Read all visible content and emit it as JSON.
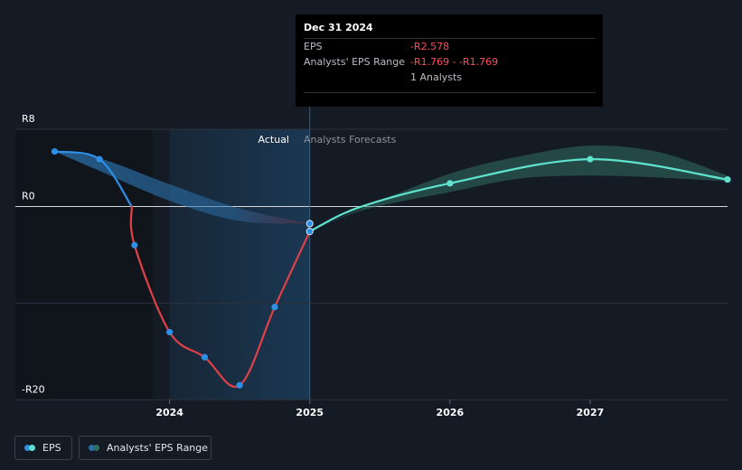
{
  "chart_data": {
    "type": "line",
    "title": "",
    "y_unit_prefix": "R",
    "ylim": [
      -20,
      8
    ],
    "y_ticks": [
      {
        "value": 8,
        "label": "R8"
      },
      {
        "value": 0,
        "label": "R0"
      },
      {
        "value": -20,
        "label": "-R20"
      }
    ],
    "x_ticks": [
      {
        "value": 2024,
        "label": "2024"
      },
      {
        "value": 2025,
        "label": "2025"
      },
      {
        "value": 2026,
        "label": "2026"
      },
      {
        "value": 2027,
        "label": "2027"
      }
    ],
    "xlim": [
      2022.9,
      2027.98
    ],
    "actual_label": "Actual",
    "forecast_label": "Analysts Forecasts",
    "divider_x": 2025.0,
    "series": [
      {
        "name": "EPS (actual, early)",
        "color": "#2d8fe6",
        "x": [
          2023.18,
          2023.5,
          2023.73
        ],
        "y": [
          5.7,
          4.9,
          0.0
        ]
      },
      {
        "name": "EPS (actual, decline)",
        "color": "#e24048",
        "x": [
          2023.73,
          2023.75,
          2024.0,
          2024.25,
          2024.5,
          2024.75,
          2025.0
        ],
        "y": [
          0.0,
          -4.0,
          -13.0,
          -15.6,
          -18.5,
          -10.4,
          -2.578
        ]
      },
      {
        "name": "EPS (forecast)",
        "color": "#5fe3cf",
        "x": [
          2025.0,
          2025.35,
          2026.0,
          2027.0,
          2027.98
        ],
        "y": [
          -2.578,
          -0.1,
          2.4,
          4.9,
          2.8
        ]
      }
    ],
    "points": [
      {
        "x": 2023.18,
        "y": 5.7,
        "color": "#2d8fe6"
      },
      {
        "x": 2023.5,
        "y": 4.9,
        "color": "#2d8fe6"
      },
      {
        "x": 2023.75,
        "y": -4.0,
        "color": "#2d8fe6"
      },
      {
        "x": 2024.0,
        "y": -13.0,
        "color": "#2d8fe6"
      },
      {
        "x": 2024.25,
        "y": -15.6,
        "color": "#2d8fe6"
      },
      {
        "x": 2024.5,
        "y": -18.5,
        "color": "#2d8fe6"
      },
      {
        "x": 2024.75,
        "y": -10.4,
        "color": "#2d8fe6"
      },
      {
        "x": 2025.0,
        "y": -1.769,
        "color": "#2d8fe6"
      },
      {
        "x": 2025.0,
        "y": -2.578,
        "color": "#2d8fe6"
      },
      {
        "x": 2026.0,
        "y": 2.4,
        "color": "#5fe3cf"
      },
      {
        "x": 2027.0,
        "y": 4.9,
        "color": "#5fe3cf"
      },
      {
        "x": 2027.98,
        "y": 2.8,
        "color": "#5fe3cf"
      }
    ],
    "range_band_past": {
      "x": [
        2023.18,
        2023.5,
        2024.0,
        2024.5,
        2025.0
      ],
      "upper": [
        5.7,
        5.0,
        2.3,
        -0.2,
        -1.769
      ],
      "lower": [
        5.7,
        3.7,
        0.6,
        -1.5,
        -1.769
      ]
    },
    "range_band_forecast": {
      "x": [
        2025.0,
        2025.4,
        2026.0,
        2026.5,
        2027.0,
        2027.5,
        2027.98
      ],
      "upper": [
        -2.578,
        0.0,
        3.4,
        5.2,
        6.3,
        5.6,
        3.2
      ],
      "lower": [
        -2.578,
        -0.3,
        1.5,
        2.9,
        3.2,
        3.0,
        2.6
      ]
    }
  },
  "tooltip": {
    "date": "Dec 31 2024",
    "eps_label": "EPS",
    "eps_value": "-R2.578",
    "range_label": "Analysts' EPS Range",
    "range_value": "-R1.769 - -R1.769",
    "analysts": "1 Analysts"
  },
  "legend": {
    "eps_label": "EPS",
    "range_label": "Analysts' EPS Range",
    "eps_colors": [
      "#2d8fe6",
      "#5fe3cf"
    ],
    "range_colors": [
      "#2a6fa8",
      "#2f6d62"
    ]
  }
}
